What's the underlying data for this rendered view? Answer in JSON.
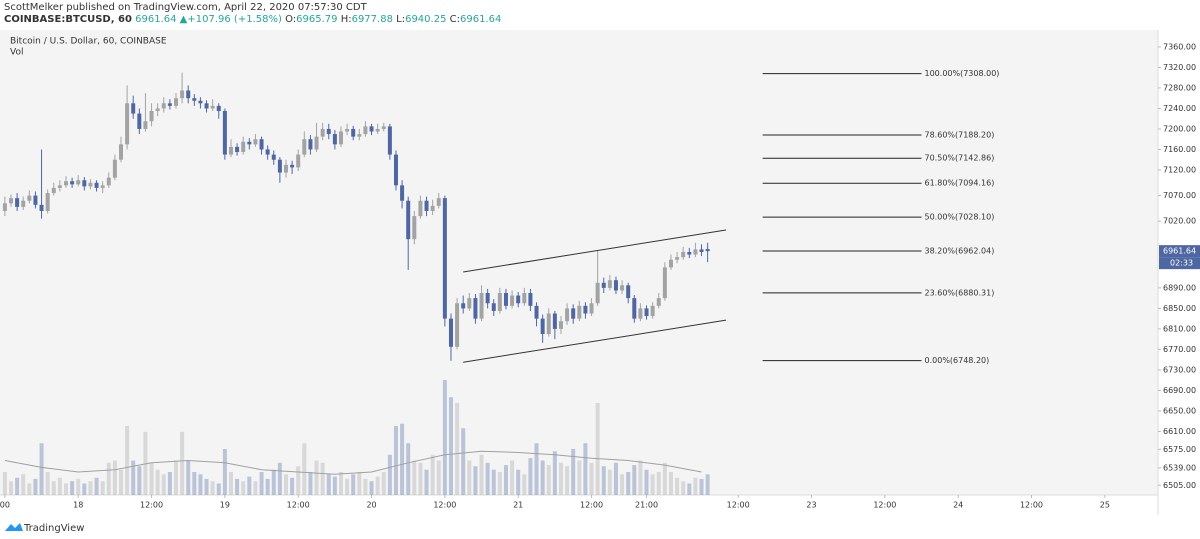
{
  "header": {
    "publisher": "ScottMelker published on TradingView.com, April 22, 2020 07:57:30 CDT",
    "symbol": "COINBASE:BTCUSD, 60",
    "last": "6961.64",
    "arrow": "▲",
    "change": "+107.96 (+1.58%)",
    "ohlc": [
      {
        "label": "O:",
        "value": "6965.79"
      },
      {
        "label": "H:",
        "value": "6977.88"
      },
      {
        "label": "L:",
        "value": "6940.25"
      },
      {
        "label": "C:",
        "value": "6961.64"
      }
    ]
  },
  "chart_data": {
    "type": "candlestick",
    "title": "Bitcoin / U.S. Dollar, 60, COINBASE",
    "volume_label": "Vol",
    "up_color": "#a3a3a3",
    "down_color": "#4e67a3",
    "grid": false,
    "xlim": [
      -0.8,
      188.7
    ],
    "ylim": [
      6486,
      7393
    ],
    "xticks": [
      {
        "value": 0,
        "label": "00"
      },
      {
        "value": 12,
        "label": "18"
      },
      {
        "value": 24,
        "label": "12:00"
      },
      {
        "value": 36,
        "label": "19"
      },
      {
        "value": 48,
        "label": "12:00"
      },
      {
        "value": 60,
        "label": "20"
      },
      {
        "value": 72,
        "label": "12:00"
      },
      {
        "value": 84,
        "label": "21"
      },
      {
        "value": 96,
        "label": "12:00"
      },
      {
        "value": 105,
        "label": "21:00"
      },
      {
        "value": 120,
        "label": "12:00"
      },
      {
        "value": 132,
        "label": "23"
      },
      {
        "value": 144,
        "label": "12:00"
      },
      {
        "value": 156,
        "label": "24"
      },
      {
        "value": 168,
        "label": "12:00"
      },
      {
        "value": 180,
        "label": "25"
      }
    ],
    "yticks": [
      {
        "value": 7360,
        "label": "7360.00"
      },
      {
        "value": 7320,
        "label": "7320.00"
      },
      {
        "value": 7280,
        "label": "7280.00"
      },
      {
        "value": 7240,
        "label": "7240.00"
      },
      {
        "value": 7200,
        "label": "7200.00"
      },
      {
        "value": 7160,
        "label": "7160.00"
      },
      {
        "value": 7120,
        "label": "7120.00"
      },
      {
        "value": 7070,
        "label": "7070.00"
      },
      {
        "value": 7020,
        "label": "7020.00"
      },
      {
        "value": 6890,
        "label": "6890.00"
      },
      {
        "value": 6850,
        "label": "6850.00"
      },
      {
        "value": 6810,
        "label": "6810.00"
      },
      {
        "value": 6770,
        "label": "6770.00"
      },
      {
        "value": 6730,
        "label": "6730.00"
      },
      {
        "value": 6690,
        "label": "6690.00"
      },
      {
        "value": 6650,
        "label": "6650.00"
      },
      {
        "value": 6610,
        "label": "6610.00"
      },
      {
        "value": 6575,
        "label": "6575.00"
      },
      {
        "value": 6539,
        "label": "6539.00"
      },
      {
        "value": 6505,
        "label": "6505.00"
      }
    ],
    "x": [
      0,
      1,
      2,
      3,
      4,
      5,
      6,
      7,
      8,
      9,
      10,
      11,
      12,
      13,
      14,
      15,
      16,
      17,
      18,
      19,
      20,
      21,
      22,
      23,
      24,
      25,
      26,
      27,
      28,
      29,
      30,
      31,
      32,
      33,
      34,
      35,
      36,
      37,
      38,
      39,
      40,
      41,
      42,
      43,
      44,
      45,
      46,
      47,
      48,
      49,
      50,
      51,
      52,
      53,
      54,
      55,
      56,
      57,
      58,
      59,
      60,
      61,
      62,
      63,
      64,
      65,
      66,
      67,
      68,
      69,
      70,
      71,
      72,
      73,
      74,
      75,
      76,
      77,
      78,
      79,
      80,
      81,
      82,
      83,
      84,
      85,
      86,
      87,
      88,
      89,
      90,
      91,
      92,
      93,
      94,
      95,
      96,
      97,
      98,
      99,
      100,
      101,
      102,
      103,
      104,
      105,
      106,
      107,
      108,
      109,
      110,
      111,
      112,
      113,
      114,
      115
    ],
    "open": [
      7040,
      7055,
      7065,
      7048,
      7060,
      7070,
      7052,
      7040,
      7075,
      7085,
      7090,
      7098,
      7092,
      7100,
      7088,
      7095,
      7085,
      7090,
      7105,
      7140,
      7170,
      7250,
      7230,
      7200,
      7215,
      7235,
      7240,
      7250,
      7245,
      7260,
      7275,
      7260,
      7255,
      7250,
      7240,
      7245,
      7235,
      7150,
      7165,
      7155,
      7175,
      7170,
      7180,
      7160,
      7150,
      7140,
      7115,
      7130,
      7125,
      7150,
      7180,
      7160,
      7185,
      7200,
      7190,
      7170,
      7195,
      7200,
      7185,
      7190,
      7205,
      7195,
      7200,
      7205,
      7150,
      7090,
      7060,
      6985,
      7030,
      7060,
      7040,
      7050,
      7065,
      6830,
      6775,
      6860,
      6850,
      6870,
      6830,
      6880,
      6860,
      6845,
      6880,
      6855,
      6875,
      6860,
      6880,
      6855,
      6830,
      6800,
      6840,
      6810,
      6825,
      6850,
      6830,
      6855,
      6840,
      6860,
      6900,
      6890,
      6905,
      6885,
      6895,
      6870,
      6830,
      6850,
      6835,
      6855,
      6870,
      6930,
      6945,
      6950,
      6960,
      6955,
      6965,
      6965.79
    ],
    "high": [
      7068,
      7072,
      7075,
      7068,
      7080,
      7078,
      7160,
      7082,
      7095,
      7100,
      7108,
      7105,
      7110,
      7106,
      7102,
      7100,
      7098,
      7115,
      7150,
      7185,
      7285,
      7265,
      7240,
      7270,
      7250,
      7250,
      7262,
      7258,
      7270,
      7310,
      7285,
      7268,
      7262,
      7256,
      7258,
      7250,
      7240,
      7180,
      7172,
      7185,
      7182,
      7190,
      7185,
      7168,
      7158,
      7145,
      7140,
      7138,
      7160,
      7195,
      7188,
      7212,
      7212,
      7210,
      7198,
      7205,
      7210,
      7206,
      7200,
      7215,
      7210,
      7210,
      7212,
      7210,
      7158,
      7100,
      7068,
      7040,
      7070,
      7068,
      7062,
      7075,
      7070,
      6840,
      6870,
      6875,
      6880,
      6878,
      6895,
      6888,
      6868,
      6890,
      6888,
      6885,
      6882,
      6890,
      6888,
      6862,
      6838,
      6850,
      6845,
      6835,
      6860,
      6858,
      6865,
      6862,
      6870,
      6964,
      6910,
      6915,
      6912,
      6905,
      6900,
      6876,
      6860,
      6856,
      6862,
      6880,
      6940,
      6955,
      6960,
      6970,
      6968,
      6978,
      6975,
      6977.88
    ],
    "low": [
      7030,
      7048,
      7040,
      7042,
      7055,
      7045,
      7025,
      7035,
      7070,
      7078,
      7085,
      7085,
      7088,
      7080,
      7082,
      7078,
      7075,
      7085,
      7100,
      7135,
      7160,
      7220,
      7190,
      7195,
      7205,
      7225,
      7232,
      7238,
      7240,
      7250,
      7250,
      7245,
      7240,
      7232,
      7235,
      7220,
      7140,
      7145,
      7148,
      7150,
      7160,
      7165,
      7150,
      7140,
      7130,
      7095,
      7105,
      7112,
      7118,
      7145,
      7150,
      7155,
      7178,
      7180,
      7160,
      7165,
      7188,
      7178,
      7178,
      7185,
      7188,
      7190,
      7195,
      7140,
      7080,
      7045,
      6925,
      6975,
      7025,
      7030,
      7032,
      7045,
      6815,
      6748,
      6770,
      6840,
      6845,
      6820,
      6825,
      6850,
      6835,
      6840,
      6848,
      6850,
      6852,
      6855,
      6845,
      6815,
      6783,
      6795,
      6790,
      6800,
      6818,
      6820,
      6825,
      6830,
      6835,
      6855,
      6880,
      6885,
      6878,
      6878,
      6860,
      6822,
      6825,
      6828,
      6830,
      6850,
      6865,
      6925,
      6938,
      6945,
      6948,
      6950,
      6952,
      6940.25
    ],
    "close": [
      7055,
      7065,
      7048,
      7060,
      7070,
      7052,
      7040,
      7075,
      7085,
      7090,
      7098,
      7092,
      7100,
      7088,
      7095,
      7085,
      7090,
      7105,
      7140,
      7170,
      7250,
      7230,
      7200,
      7215,
      7235,
      7240,
      7250,
      7245,
      7260,
      7275,
      7260,
      7255,
      7250,
      7240,
      7245,
      7235,
      7150,
      7165,
      7155,
      7175,
      7170,
      7180,
      7160,
      7150,
      7140,
      7115,
      7130,
      7125,
      7150,
      7180,
      7160,
      7185,
      7200,
      7190,
      7170,
      7195,
      7200,
      7185,
      7190,
      7205,
      7195,
      7200,
      7205,
      7150,
      7090,
      7060,
      6985,
      7030,
      7060,
      7040,
      7050,
      7065,
      6830,
      6775,
      6860,
      6850,
      6870,
      6830,
      6880,
      6860,
      6845,
      6880,
      6855,
      6875,
      6860,
      6880,
      6855,
      6830,
      6800,
      6840,
      6810,
      6825,
      6850,
      6830,
      6855,
      6840,
      6860,
      6900,
      6890,
      6905,
      6885,
      6895,
      6870,
      6830,
      6850,
      6835,
      6855,
      6870,
      6930,
      6945,
      6950,
      6960,
      6955,
      6965,
      6960,
      6961.64
    ],
    "volume": [
      20,
      12,
      15,
      18,
      10,
      14,
      45,
      20,
      12,
      15,
      10,
      12,
      14,
      10,
      12,
      15,
      12,
      28,
      30,
      22,
      60,
      30,
      25,
      55,
      28,
      22,
      18,
      20,
      30,
      55,
      30,
      20,
      18,
      14,
      12,
      10,
      40,
      20,
      14,
      12,
      16,
      12,
      20,
      14,
      22,
      28,
      18,
      15,
      25,
      45,
      20,
      30,
      28,
      18,
      16,
      20,
      14,
      18,
      20,
      14,
      12,
      16,
      20,
      35,
      60,
      62,
      45,
      30,
      28,
      22,
      35,
      30,
      100,
      85,
      80,
      58,
      30,
      25,
      35,
      28,
      22,
      20,
      26,
      30,
      22,
      18,
      32,
      45,
      30,
      26,
      38,
      28,
      25,
      40,
      30,
      45,
      28,
      80,
      25,
      22,
      28,
      18,
      20,
      26,
      30,
      22,
      18,
      20,
      28,
      20,
      15,
      12,
      10,
      15,
      14,
      18
    ],
    "volume_ma": {
      "color": "#a0a0a0",
      "x": [
        0,
        6,
        12,
        18,
        24,
        30,
        36,
        42,
        48,
        54,
        60,
        66,
        72,
        78,
        84,
        90,
        96,
        102,
        108,
        114
      ],
      "values": [
        30,
        24,
        20,
        22,
        28,
        30,
        28,
        22,
        20,
        18,
        20,
        28,
        35,
        38,
        37,
        35,
        32,
        30,
        26,
        20
      ]
    },
    "fib": {
      "x": [
        124,
        150
      ],
      "levels": [
        {
          "value": 7308,
          "label": "100.00%(7308.00)"
        },
        {
          "value": 7188.2,
          "label": "78.60%(7188.20)"
        },
        {
          "value": 7142.86,
          "label": "70.50%(7142.86)"
        },
        {
          "value": 7094.16,
          "label": "61.80%(7094.16)"
        },
        {
          "value": 7028.1,
          "label": "50.00%(7028.10)"
        },
        {
          "value": 6962.04,
          "label": "38.20%(6962.04)"
        },
        {
          "value": 6880.31,
          "label": "23.60%(6880.31)"
        },
        {
          "value": 6748.2,
          "label": "0.00%(6748.20)"
        }
      ]
    },
    "trendlines": [
      {
        "x": [
          75,
          118
        ],
        "values": [
          6921,
          7003
        ]
      },
      {
        "x": [
          75,
          118
        ],
        "values": [
          6745,
          6827
        ]
      }
    ],
    "last_price": {
      "value": 6961.64,
      "label": "6961.64"
    },
    "countdown": "02:33"
  },
  "footer": {
    "brand": "TradingView"
  }
}
